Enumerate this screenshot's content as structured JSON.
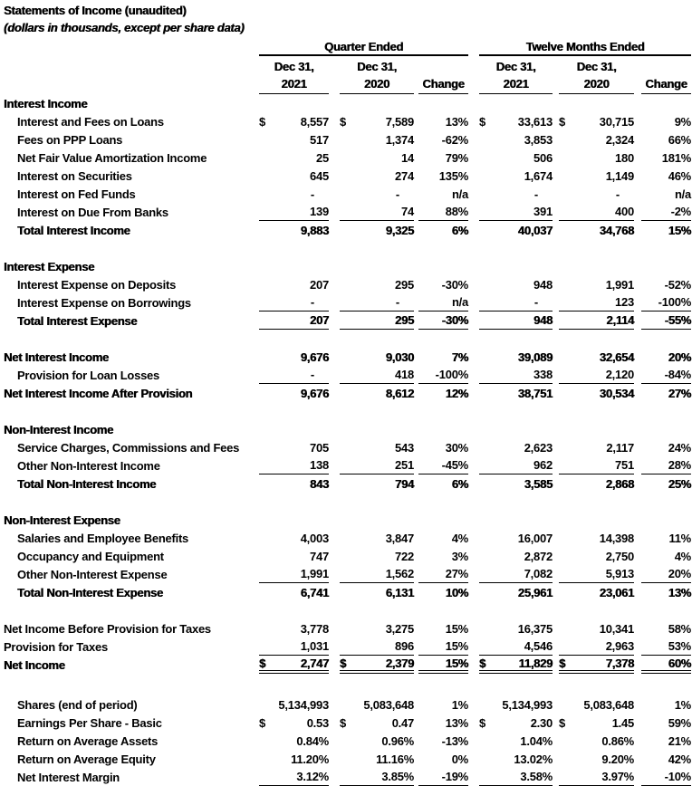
{
  "page": {
    "title": "Statements of Income (unaudited)",
    "subtitle": "(dollars in thousands, except per share data)"
  },
  "table": {
    "currency": "$",
    "groups": [
      {
        "label": "Quarter Ended"
      },
      {
        "label": "Twelve Months Ended"
      }
    ],
    "sub_headers": [
      {
        "line1": "Dec 31,",
        "line2": "2021"
      },
      {
        "line1": "Dec 31,",
        "line2": "2020"
      },
      {
        "line1": "",
        "line2": "Change"
      },
      {
        "line1": "Dec 31,",
        "line2": "2021"
      },
      {
        "line1": "Dec 31,",
        "line2": "2020"
      },
      {
        "line1": "",
        "line2": "Change"
      }
    ],
    "rows": [
      {
        "type": "section",
        "label": "Interest Income"
      },
      {
        "type": "row",
        "label": "Interest and Fees on Loans",
        "indent": true,
        "dollar": true,
        "rule": "none",
        "values": [
          "8,557",
          "7,589",
          "13%",
          "33,613",
          "30,715",
          "9%"
        ]
      },
      {
        "type": "row",
        "label": "Fees on PPP Loans",
        "indent": true,
        "rule": "none",
        "values": [
          "517",
          "1,374",
          "-62%",
          "3,853",
          "2,324",
          "66%"
        ]
      },
      {
        "type": "row",
        "label": "Net Fair Value Amortization Income",
        "indent": true,
        "rule": "none",
        "values": [
          "25",
          "14",
          "79%",
          "506",
          "180",
          "181%"
        ]
      },
      {
        "type": "row",
        "label": "Interest on Securities",
        "indent": true,
        "rule": "none",
        "values": [
          "645",
          "274",
          "135%",
          "1,674",
          "1,149",
          "46%"
        ]
      },
      {
        "type": "row",
        "label": "Interest on Fed Funds",
        "indent": true,
        "rule": "none",
        "values": [
          "-",
          "-",
          "n/a",
          "-",
          "-",
          "n/a"
        ]
      },
      {
        "type": "row",
        "label": "Interest on Due From Banks",
        "indent": true,
        "rule": "single",
        "values": [
          "139",
          "74",
          "88%",
          "391",
          "400",
          "-2%"
        ]
      },
      {
        "type": "row",
        "label": "Total Interest Income",
        "indent": true,
        "bold": true,
        "rule": "none",
        "values": [
          "9,883",
          "9,325",
          "6%",
          "40,037",
          "34,768",
          "15%"
        ]
      },
      {
        "type": "blank"
      },
      {
        "type": "section",
        "label": "Interest Expense"
      },
      {
        "type": "row",
        "label": "Interest Expense on Deposits",
        "indent": true,
        "rule": "none",
        "values": [
          "207",
          "295",
          "-30%",
          "948",
          "1,991",
          "-52%"
        ]
      },
      {
        "type": "row",
        "label": "Interest Expense on Borrowings",
        "indent": true,
        "rule": "single",
        "values": [
          "-",
          "-",
          "n/a",
          "-",
          "123",
          "-100%"
        ]
      },
      {
        "type": "row",
        "label": "Total Interest Expense",
        "indent": true,
        "bold": true,
        "rule": "single",
        "values": [
          "207",
          "295",
          "-30%",
          "948",
          "2,114",
          "-55%"
        ]
      },
      {
        "type": "blank"
      },
      {
        "type": "row",
        "label": "Net Interest Income",
        "bold": true,
        "rule": "none",
        "values": [
          "9,676",
          "9,030",
          "7%",
          "39,089",
          "32,654",
          "20%"
        ]
      },
      {
        "type": "row",
        "label": "Provision for Loan Losses",
        "indent": true,
        "rule": "single",
        "values": [
          "-",
          "418",
          "-100%",
          "338",
          "2,120",
          "-84%"
        ]
      },
      {
        "type": "row",
        "label": "Net Interest Income After Provision",
        "bold": true,
        "rule": "none",
        "values": [
          "9,676",
          "8,612",
          "12%",
          "38,751",
          "30,534",
          "27%"
        ]
      },
      {
        "type": "blank"
      },
      {
        "type": "section",
        "label": "Non-Interest Income"
      },
      {
        "type": "row",
        "label": "Service Charges, Commissions and Fees",
        "indent": true,
        "rule": "none",
        "values": [
          "705",
          "543",
          "30%",
          "2,623",
          "2,117",
          "24%"
        ]
      },
      {
        "type": "row",
        "label": "Other Non-Interest Income",
        "indent": true,
        "rule": "single",
        "values": [
          "138",
          "251",
          "-45%",
          "962",
          "751",
          "28%"
        ]
      },
      {
        "type": "row",
        "label": "Total Non-Interest Income",
        "indent": true,
        "bold": true,
        "rule": "none",
        "values": [
          "843",
          "794",
          "6%",
          "3,585",
          "2,868",
          "25%"
        ]
      },
      {
        "type": "blank"
      },
      {
        "type": "section",
        "label": "Non-Interest Expense"
      },
      {
        "type": "row",
        "label": "Salaries and Employee Benefits",
        "indent": true,
        "rule": "none",
        "values": [
          "4,003",
          "3,847",
          "4%",
          "16,007",
          "14,398",
          "11%"
        ]
      },
      {
        "type": "row",
        "label": "Occupancy and Equipment",
        "indent": true,
        "rule": "none",
        "values": [
          "747",
          "722",
          "3%",
          "2,872",
          "2,750",
          "4%"
        ]
      },
      {
        "type": "row",
        "label": "Other Non-Interest Expense",
        "indent": true,
        "rule": "single",
        "values": [
          "1,991",
          "1,562",
          "27%",
          "7,082",
          "5,913",
          "20%"
        ]
      },
      {
        "type": "row",
        "label": "Total Non-Interest Expense",
        "indent": true,
        "bold": true,
        "rule": "none",
        "values": [
          "6,741",
          "6,131",
          "10%",
          "25,961",
          "23,061",
          "13%"
        ]
      },
      {
        "type": "blank"
      },
      {
        "type": "row",
        "label": "Net Income Before Provision for Taxes",
        "rule": "none",
        "values": [
          "3,778",
          "3,275",
          "15%",
          "16,375",
          "10,341",
          "58%"
        ]
      },
      {
        "type": "row",
        "label": "Provision for Taxes",
        "rule": "single",
        "values": [
          "1,031",
          "896",
          "15%",
          "4,546",
          "2,963",
          "53%"
        ]
      },
      {
        "type": "row",
        "label": "Net Income",
        "bold": true,
        "dollar": true,
        "rule": "double",
        "values": [
          "2,747",
          "2,379",
          "15%",
          "11,829",
          "7,378",
          "60%"
        ]
      },
      {
        "type": "blank",
        "tall": true
      },
      {
        "type": "row",
        "label": "Shares (end of period)",
        "indent": true,
        "rule": "none",
        "values": [
          "5,134,993",
          "5,083,648",
          "1%",
          "5,134,993",
          "5,083,648",
          "1%"
        ]
      },
      {
        "type": "row",
        "label": "Earnings Per Share - Basic",
        "indent": true,
        "dollar": true,
        "rule": "none",
        "values": [
          "0.53",
          "0.47",
          "13%",
          "2.30",
          "1.45",
          "59%"
        ]
      },
      {
        "type": "row",
        "label": "Return on Average Assets",
        "indent": true,
        "rule": "none",
        "values": [
          "0.84%",
          "0.96%",
          "-13%",
          "1.04%",
          "0.86%",
          "21%"
        ]
      },
      {
        "type": "row",
        "label": "Return on Average Equity",
        "indent": true,
        "rule": "none",
        "values": [
          "11.20%",
          "11.16%",
          "0%",
          "13.02%",
          "9.20%",
          "42%"
        ]
      },
      {
        "type": "row",
        "label": "Net Interest Margin",
        "indent": true,
        "rule": "single",
        "values": [
          "3.12%",
          "3.85%",
          "-19%",
          "3.58%",
          "3.97%",
          "-10%"
        ]
      }
    ]
  }
}
